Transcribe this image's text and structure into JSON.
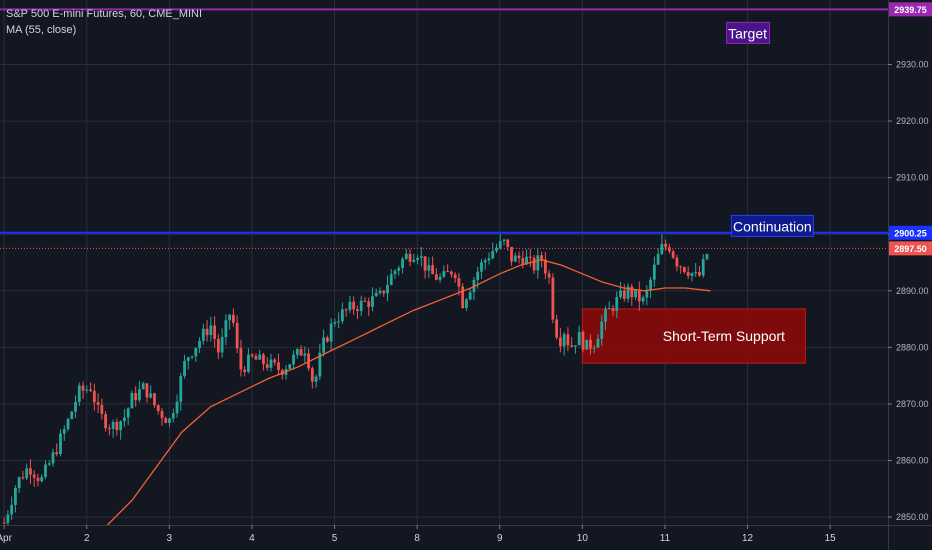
{
  "legend": {
    "symbol_line": "S&P 500 E-mini Futures, 60, CME_MINI",
    "indicator_line": "MA (55, close)"
  },
  "colors": {
    "background": "#131722",
    "grid": "#2a2e39",
    "up": "#26a69a",
    "down": "#ef5350",
    "ma": "#f5612f",
    "target_line": "#9c27b0",
    "continuation_line": "#1a32ff",
    "last_price": "#ef5350",
    "support_box": "#8b0a0a"
  },
  "chart_data": {
    "type": "candlestick",
    "x_ticks": [
      {
        "label": "Apr",
        "day": 1
      },
      {
        "label": "2",
        "day": 2
      },
      {
        "label": "3",
        "day": 3
      },
      {
        "label": "4",
        "day": 4
      },
      {
        "label": "5",
        "day": 5
      },
      {
        "label": "8",
        "day": 6
      },
      {
        "label": "9",
        "day": 7
      },
      {
        "label": "10",
        "day": 8
      },
      {
        "label": "11",
        "day": 9
      },
      {
        "label": "12",
        "day": 10
      },
      {
        "label": "15",
        "day": 11
      }
    ],
    "y_ticks": [
      "2850.00",
      "2860.00",
      "2870.00",
      "2880.00",
      "2890.00",
      "2900.00",
      "2910.00",
      "2920.00",
      "2930.00"
    ],
    "y_tick_values": [
      2850,
      2860,
      2870,
      2880,
      2890,
      2900,
      2910,
      2920,
      2930
    ],
    "ylim": [
      2848.6,
      2941.4
    ],
    "xlim": [
      0.95,
      11.7
    ],
    "price_path": [
      [
        1.0,
        2849.0
      ],
      [
        1.15,
        2856.0
      ],
      [
        1.3,
        2859.0
      ],
      [
        1.45,
        2856.5
      ],
      [
        1.6,
        2861.0
      ],
      [
        1.75,
        2866.0
      ],
      [
        1.9,
        2872.0
      ],
      [
        2.05,
        2873.0
      ],
      [
        2.15,
        2868.0
      ],
      [
        2.3,
        2866.0
      ],
      [
        2.45,
        2867.5
      ],
      [
        2.55,
        2871.0
      ],
      [
        2.7,
        2873.0
      ],
      [
        2.85,
        2869.0
      ],
      [
        3.0,
        2867.0
      ],
      [
        3.1,
        2872.0
      ],
      [
        3.2,
        2878.0
      ],
      [
        3.35,
        2881.0
      ],
      [
        3.5,
        2884.0
      ],
      [
        3.6,
        2879.0
      ],
      [
        3.75,
        2887.0
      ],
      [
        3.85,
        2876.0
      ],
      [
        4.0,
        2878.0
      ],
      [
        4.2,
        2877.0
      ],
      [
        4.35,
        2876.0
      ],
      [
        4.5,
        2878.0
      ],
      [
        4.65,
        2880.0
      ],
      [
        4.75,
        2873.0
      ],
      [
        4.85,
        2880.0
      ],
      [
        5.0,
        2885.0
      ],
      [
        5.2,
        2887.0
      ],
      [
        5.4,
        2888.0
      ],
      [
        5.55,
        2889.0
      ],
      [
        5.7,
        2893.0
      ],
      [
        5.85,
        2896.0
      ],
      [
        6.0,
        2897.0
      ],
      [
        6.15,
        2893.0
      ],
      [
        6.3,
        2892.0
      ],
      [
        6.45,
        2894.0
      ],
      [
        6.55,
        2888.0
      ],
      [
        6.65,
        2891.0
      ],
      [
        6.75,
        2894.0
      ],
      [
        6.9,
        2897.0
      ],
      [
        7.05,
        2898.5
      ],
      [
        7.15,
        2895.5
      ],
      [
        7.3,
        2896.0
      ],
      [
        7.4,
        2894.0
      ],
      [
        7.5,
        2896.0
      ],
      [
        7.6,
        2892.0
      ],
      [
        7.65,
        2885.0
      ],
      [
        7.72,
        2881.0
      ],
      [
        7.78,
        2883.0
      ],
      [
        7.85,
        2880.0
      ],
      [
        7.95,
        2882.0
      ],
      [
        8.05,
        2880.0
      ],
      [
        8.15,
        2881.0
      ],
      [
        8.25,
        2885.0
      ],
      [
        8.4,
        2888.0
      ],
      [
        8.55,
        2890.0
      ],
      [
        8.65,
        2889.0
      ],
      [
        8.75,
        2888.0
      ],
      [
        8.85,
        2893.0
      ],
      [
        8.95,
        2897.5
      ],
      [
        9.05,
        2898.0
      ],
      [
        9.15,
        2895.0
      ],
      [
        9.3,
        2893.5
      ],
      [
        9.4,
        2892.0
      ],
      [
        9.5,
        2896.0
      ],
      [
        9.55,
        2899.0
      ]
    ],
    "ma_path": [
      [
        2.25,
        2848.6
      ],
      [
        2.55,
        2853.0
      ],
      [
        2.85,
        2859.0
      ],
      [
        3.15,
        2865.0
      ],
      [
        3.5,
        2869.5
      ],
      [
        3.85,
        2872.0
      ],
      [
        4.2,
        2874.5
      ],
      [
        4.55,
        2876.5
      ],
      [
        4.9,
        2879.0
      ],
      [
        5.25,
        2881.5
      ],
      [
        5.6,
        2884.0
      ],
      [
        5.95,
        2886.5
      ],
      [
        6.3,
        2888.5
      ],
      [
        6.65,
        2890.5
      ],
      [
        7.0,
        2893.0
      ],
      [
        7.25,
        2894.5
      ],
      [
        7.5,
        2895.5
      ],
      [
        7.75,
        2894.5
      ],
      [
        8.0,
        2893.0
      ],
      [
        8.25,
        2891.5
      ],
      [
        8.5,
        2890.5
      ],
      [
        8.75,
        2890.0
      ],
      [
        9.0,
        2890.5
      ],
      [
        9.25,
        2890.5
      ],
      [
        9.55,
        2890.0
      ]
    ],
    "target_level": 2939.75,
    "continuation_level": 2900.25,
    "last_price": 2897.5,
    "badges": {
      "target": "2939.75",
      "continuation": "2900.25",
      "last": "2897.50"
    },
    "annotations": {
      "target": "Target",
      "continuation": "Continuation",
      "support": "Short-Term Support"
    },
    "support_zone": {
      "from_day": 8.0,
      "to_day": 10.7,
      "low": 2877.2,
      "high": 2886.8
    },
    "target_label_at": {
      "day": 10.0,
      "price": 2935.5
    },
    "continuation_label_at": {
      "day": 10.3,
      "price": 2901.2
    }
  }
}
